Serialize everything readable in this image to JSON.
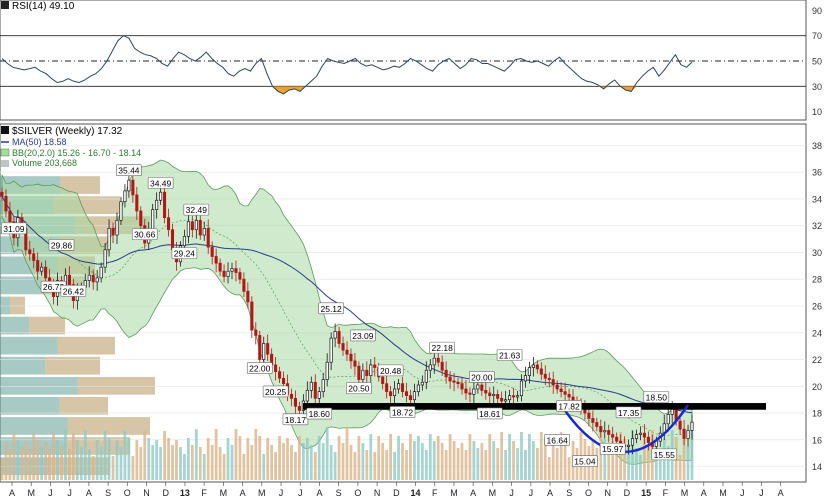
{
  "chart_data": [
    {
      "type": "line",
      "panel": "rsi",
      "legend": "RSI(14) 49.10",
      "ylim": [
        5,
        95
      ],
      "yticks": [
        10,
        30,
        50,
        70,
        90
      ],
      "hlines": [
        30,
        50,
        70
      ],
      "series": [
        {
          "name": "RSI(14)",
          "values": [
            52,
            48,
            45,
            44,
            43,
            44,
            45,
            42,
            40,
            36,
            33,
            34,
            36,
            34,
            33,
            35,
            38,
            40,
            44,
            50,
            58,
            66,
            70,
            68,
            60,
            57,
            55,
            54,
            52,
            48,
            46,
            52,
            57,
            55,
            52,
            50,
            53,
            57,
            52,
            48,
            45,
            40,
            38,
            42,
            44,
            42,
            48,
            52,
            40,
            30,
            26,
            24,
            27,
            28,
            26,
            30,
            34,
            38,
            46,
            52,
            50,
            49,
            48,
            50,
            52,
            48,
            46,
            47,
            45,
            43,
            44,
            46,
            45,
            48,
            52,
            50,
            47,
            44,
            42,
            47,
            50,
            52,
            48,
            44,
            47,
            52,
            51,
            48,
            48,
            46,
            44,
            42,
            46,
            51,
            52,
            50,
            49,
            50,
            48,
            46,
            50,
            53,
            48,
            44,
            40,
            36,
            34,
            33,
            31,
            28,
            32,
            35,
            30,
            27,
            26,
            33,
            38,
            42,
            45,
            38,
            43,
            49,
            55,
            47,
            45,
            49.1
          ]
        }
      ]
    },
    {
      "type": "candlestick",
      "panel": "price",
      "legend": {
        "symbol": "$SILVER (Weekly) 17.32",
        "ma": "MA(50) 18.58",
        "bb": "BB(20,2.0) 15.26 - 16.70 - 18.14",
        "volume": "Volume 203,668"
      },
      "ylim": [
        13,
        39
      ],
      "yticks": [
        14,
        16,
        18,
        20,
        22,
        24,
        26,
        28,
        30,
        32,
        34,
        36,
        38
      ],
      "x_tick_labels": [
        "A",
        "M",
        "J",
        "J",
        "A",
        "S",
        "O",
        "N",
        "D",
        "13",
        "F",
        "M",
        "A",
        "M",
        "J",
        "J",
        "A",
        "S",
        "O",
        "N",
        "D",
        "14",
        "F",
        "M",
        "A",
        "M",
        "J",
        "J",
        "A",
        "S",
        "O",
        "N",
        "D",
        "15",
        "F",
        "M",
        "A",
        "M",
        "J",
        "J",
        "A"
      ],
      "close": [
        34.2,
        33.1,
        32.3,
        31.1,
        32.6,
        31.8,
        30.2,
        29.9,
        29.4,
        28.6,
        28.9,
        28.1,
        27.6,
        26.7,
        27.9,
        27.2,
        28.3,
        27.6,
        26.4,
        27.1,
        27.4,
        27.9,
        28.3,
        27.8,
        28.1,
        28.9,
        30.2,
        31.8,
        31.3,
        32.4,
        33.8,
        34.6,
        35.4,
        34.3,
        33.1,
        32.0,
        30.7,
        31.6,
        33.2,
        33.9,
        34.5,
        32.6,
        31.7,
        30.2,
        29.3,
        30.5,
        31.2,
        32.3,
        31.7,
        32.4,
        31.3,
        31.8,
        30.4,
        29.7,
        29.2,
        28.6,
        28.2,
        28.6,
        28.8,
        28.5,
        28.0,
        27.1,
        26.3,
        24.2,
        23.8,
        22.0,
        23.2,
        22.4,
        21.6,
        21.1,
        20.6,
        20.2,
        19.4,
        19.1,
        18.5,
        18.2,
        18.9,
        19.7,
        20.3,
        19.1,
        19.6,
        20.5,
        21.8,
        23.6,
        24.1,
        23.2,
        22.7,
        22.4,
        21.9,
        21.5,
        20.5,
        21.2,
        20.8,
        21.6,
        21.4,
        20.7,
        20.2,
        19.6,
        19.3,
        19.8,
        20.2,
        19.6,
        19.3,
        19.0,
        19.6,
        20.1,
        20.3,
        21.2,
        21.6,
        22.1,
        21.8,
        21.2,
        20.7,
        20.4,
        20.3,
        20.2,
        19.8,
        19.5,
        19.4,
        19.8,
        20.1,
        19.7,
        19.5,
        19.3,
        19.4,
        19.1,
        18.9,
        19.0,
        19.3,
        19.2,
        19.3,
        20.4,
        20.8,
        21.4,
        21.6,
        21.3,
        20.9,
        20.6,
        20.5,
        20.1,
        19.8,
        19.6,
        19.4,
        19.2,
        18.9,
        18.6,
        18.3,
        18.0,
        17.6,
        17.3,
        17.0,
        16.6,
        16.7,
        16.4,
        16.2,
        15.9,
        15.6,
        15.5,
        15.6,
        16.1,
        16.4,
        16.5,
        16.2,
        15.8,
        15.5,
        15.9,
        16.5,
        17.2,
        17.9,
        18.3,
        17.4,
        16.8,
        16.1,
        16.7,
        17.32
      ],
      "annotations": [
        {
          "text": "35.44",
          "x": 32,
          "y": 35.44
        },
        {
          "text": "34.49",
          "x": 40,
          "y": 34.49
        },
        {
          "text": "32.49",
          "x": 49,
          "y": 32.49
        },
        {
          "text": "31.09",
          "x": 3,
          "y": 31.09
        },
        {
          "text": "29.86",
          "x": 15,
          "y": 29.86
        },
        {
          "text": "30.66",
          "x": 36,
          "y": 30.66
        },
        {
          "text": "29.24",
          "x": 46,
          "y": 29.24
        },
        {
          "text": "26.73",
          "x": 13,
          "y": 26.73
        },
        {
          "text": "26.42",
          "x": 18,
          "y": 26.42
        },
        {
          "text": "25.12",
          "x": 83,
          "y": 25.12
        },
        {
          "text": "23.09",
          "x": 91,
          "y": 23.09
        },
        {
          "text": "22.18",
          "x": 111,
          "y": 22.18
        },
        {
          "text": "21.63",
          "x": 128,
          "y": 21.63
        },
        {
          "text": "20.48",
          "x": 98,
          "y": 20.48
        },
        {
          "text": "20.00",
          "x": 121,
          "y": 20.0
        },
        {
          "text": "20.50",
          "x": 90,
          "y": 20.5
        },
        {
          "text": "22.00",
          "x": 65,
          "y": 22.0
        },
        {
          "text": "20.25",
          "x": 69,
          "y": 20.25
        },
        {
          "text": "18.17",
          "x": 74,
          "y": 18.17
        },
        {
          "text": "18.60",
          "x": 80,
          "y": 18.6
        },
        {
          "text": "18.72",
          "x": 101,
          "y": 18.72
        },
        {
          "text": "18.61",
          "x": 123,
          "y": 18.61
        },
        {
          "text": "17.82",
          "x": 143,
          "y": 17.82
        },
        {
          "text": "18.50",
          "x": 165,
          "y": 18.5
        },
        {
          "text": "17.35",
          "x": 158,
          "y": 17.35
        },
        {
          "text": "16.64",
          "x": 140,
          "y": 16.64
        },
        {
          "text": "15.97",
          "x": 154,
          "y": 15.97
        },
        {
          "text": "15.04",
          "x": 147,
          "y": 15.04
        },
        {
          "text": "15.55",
          "x": 167,
          "y": 15.55
        }
      ]
    }
  ],
  "colors": {
    "up": "#1a1a1a",
    "down": "#b01818",
    "bb_fill": "#a9d8a4",
    "bb_line": "#5a9a58",
    "ma": "#283c8c",
    "rsi_line": "#2b4a54",
    "rsi_oversold": "#f0a030",
    "support": "#000000",
    "cup": "#1a28d0",
    "volume": "#b8c8c0"
  }
}
